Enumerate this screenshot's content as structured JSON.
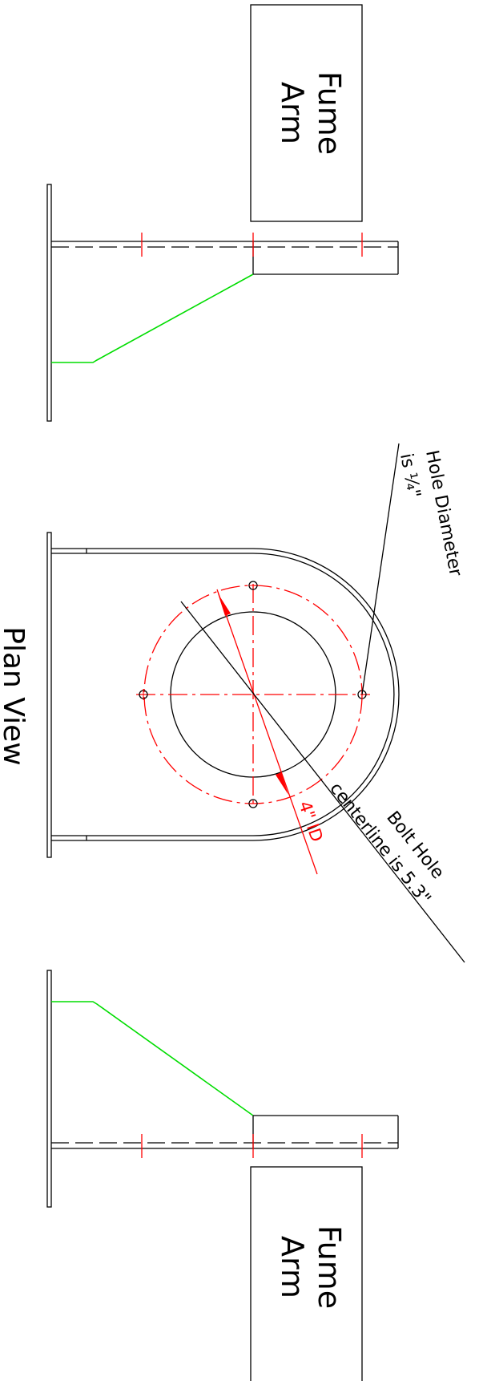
{
  "drawing": {
    "view_title": "Plan View",
    "top_arm_label_line1": "Fume",
    "top_arm_label_line2": "Arm",
    "bottom_arm_label_line1": "Fume",
    "bottom_arm_label_line2": "Arm",
    "hole_note_line1": "Hole Diameter",
    "hole_note_line2": "is ¼\"",
    "bolt_note_line1": "Bolt Hole",
    "bolt_note_line2": "centerline is 5.3\"",
    "id_dimension": "4\" ID"
  },
  "colors": {
    "outline": "#000000",
    "dimension": "#ff0000",
    "gusset": "#00dd00"
  }
}
